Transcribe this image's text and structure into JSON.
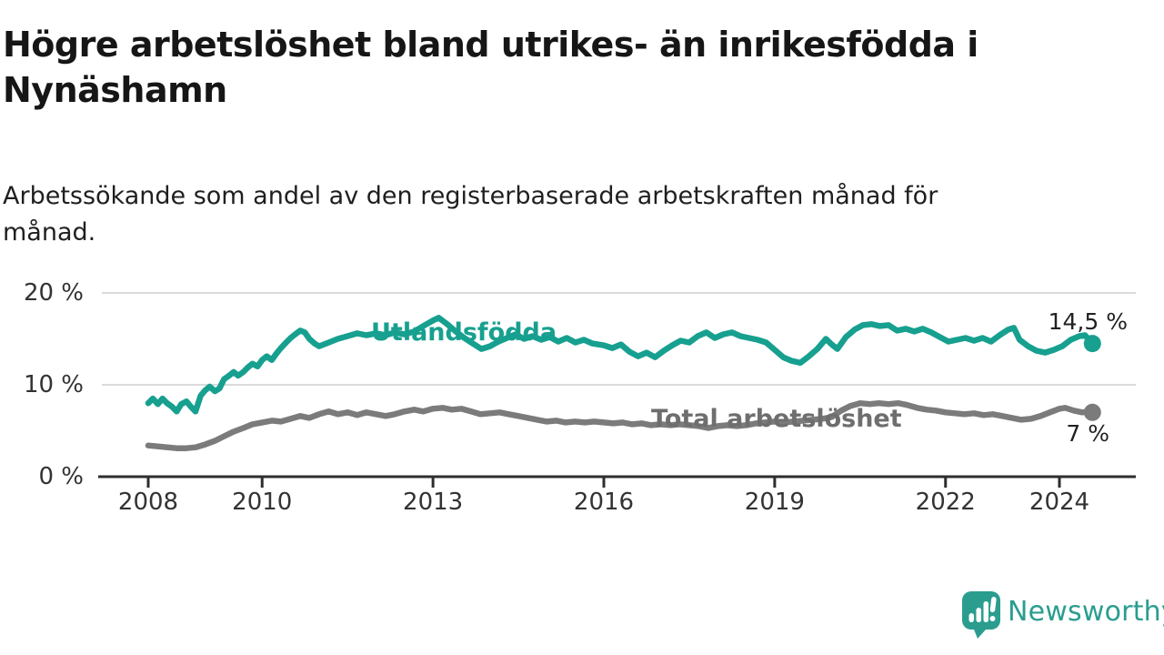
{
  "title_lines": [
    "Högre arbetslöshet bland utrikes- än inrikesfödda i",
    "Nynäshamn"
  ],
  "subtitle_lines": [
    "Arbetssökande som andel av den registerbaserade arbetskraften månad för",
    "månad."
  ],
  "colors": {
    "teal": "#17A08F",
    "gray": "#7B7B7B",
    "gray_label": "#6E6E6E",
    "axis": "#2E2E2E",
    "gridline": "#DBDBDB",
    "value_text": "#222222",
    "logo_teal": "#2A9D8F"
  },
  "logo": {
    "text": "Newsworthy",
    "icon": "speech-bubble-bar-chart-exclamation"
  },
  "chart_data": {
    "type": "line",
    "title": "Högre arbetslöshet bland utrikes- än inrikesfödda i Nynäshamn",
    "subtitle": "Arbetssökande som andel av den registerbaserade arbetskraften månad för månad.",
    "xlabel": "",
    "ylabel": "",
    "unit": "%",
    "grid": "horizontal",
    "legend_position": "inline-on-line",
    "xlim": [
      2007.2,
      2025.4
    ],
    "ylim": [
      0,
      20
    ],
    "y_ticks": [
      0,
      10,
      20
    ],
    "y_tick_labels": [
      "0 %",
      "10 %",
      "20 %"
    ],
    "x_ticks": [
      2008,
      2010,
      2013,
      2016,
      2019,
      2022,
      2024
    ],
    "x_tick_labels": [
      "2008",
      "2010",
      "2013",
      "2016",
      "2019",
      "2022",
      "2024"
    ],
    "series": [
      {
        "name": "Utlandsfödda",
        "color": "#17A08F",
        "label_color": "#17A08F",
        "end_label": "14,5 %",
        "end_value": 14.5,
        "points": [
          [
            2008.0,
            8.0
          ],
          [
            2008.08,
            8.5
          ],
          [
            2008.17,
            7.9
          ],
          [
            2008.25,
            8.5
          ],
          [
            2008.33,
            8.0
          ],
          [
            2008.42,
            7.6
          ],
          [
            2008.5,
            7.1
          ],
          [
            2008.58,
            7.9
          ],
          [
            2008.67,
            8.2
          ],
          [
            2008.75,
            7.6
          ],
          [
            2008.83,
            7.1
          ],
          [
            2008.92,
            8.8
          ],
          [
            2009.0,
            9.4
          ],
          [
            2009.08,
            9.8
          ],
          [
            2009.17,
            9.3
          ],
          [
            2009.25,
            9.6
          ],
          [
            2009.33,
            10.6
          ],
          [
            2009.42,
            11.0
          ],
          [
            2009.5,
            11.4
          ],
          [
            2009.58,
            11.0
          ],
          [
            2009.67,
            11.4
          ],
          [
            2009.75,
            11.9
          ],
          [
            2009.83,
            12.3
          ],
          [
            2009.92,
            12.0
          ],
          [
            2010.0,
            12.7
          ],
          [
            2010.08,
            13.1
          ],
          [
            2010.17,
            12.7
          ],
          [
            2010.25,
            13.4
          ],
          [
            2010.33,
            14.0
          ],
          [
            2010.42,
            14.6
          ],
          [
            2010.5,
            15.1
          ],
          [
            2010.58,
            15.5
          ],
          [
            2010.67,
            15.9
          ],
          [
            2010.75,
            15.7
          ],
          [
            2010.83,
            15.0
          ],
          [
            2010.92,
            14.5
          ],
          [
            2011.0,
            14.2
          ],
          [
            2011.17,
            14.6
          ],
          [
            2011.33,
            15.0
          ],
          [
            2011.5,
            15.3
          ],
          [
            2011.67,
            15.6
          ],
          [
            2011.83,
            15.4
          ],
          [
            2012.0,
            15.6
          ],
          [
            2012.17,
            15.4
          ],
          [
            2012.33,
            15.7
          ],
          [
            2012.5,
            15.5
          ],
          [
            2012.67,
            15.8
          ],
          [
            2012.83,
            16.4
          ],
          [
            2013.0,
            17.0
          ],
          [
            2013.1,
            17.3
          ],
          [
            2013.25,
            16.6
          ],
          [
            2013.4,
            15.8
          ],
          [
            2013.55,
            15.1
          ],
          [
            2013.7,
            14.5
          ],
          [
            2013.85,
            13.9
          ],
          [
            2014.0,
            14.2
          ],
          [
            2014.15,
            14.7
          ],
          [
            2014.3,
            15.1
          ],
          [
            2014.45,
            15.5
          ],
          [
            2014.6,
            15.0
          ],
          [
            2014.75,
            15.3
          ],
          [
            2014.9,
            14.9
          ],
          [
            2015.05,
            15.2
          ],
          [
            2015.2,
            14.7
          ],
          [
            2015.35,
            15.1
          ],
          [
            2015.5,
            14.6
          ],
          [
            2015.65,
            14.9
          ],
          [
            2015.8,
            14.5
          ],
          [
            2016.0,
            14.3
          ],
          [
            2016.15,
            14.0
          ],
          [
            2016.3,
            14.4
          ],
          [
            2016.45,
            13.6
          ],
          [
            2016.6,
            13.1
          ],
          [
            2016.75,
            13.5
          ],
          [
            2016.9,
            13.0
          ],
          [
            2017.05,
            13.7
          ],
          [
            2017.2,
            14.3
          ],
          [
            2017.35,
            14.8
          ],
          [
            2017.5,
            14.6
          ],
          [
            2017.65,
            15.3
          ],
          [
            2017.8,
            15.7
          ],
          [
            2017.95,
            15.1
          ],
          [
            2018.1,
            15.5
          ],
          [
            2018.25,
            15.7
          ],
          [
            2018.4,
            15.3
          ],
          [
            2018.55,
            15.1
          ],
          [
            2018.7,
            14.9
          ],
          [
            2018.85,
            14.6
          ],
          [
            2019.0,
            13.8
          ],
          [
            2019.15,
            13.0
          ],
          [
            2019.3,
            12.6
          ],
          [
            2019.45,
            12.4
          ],
          [
            2019.6,
            13.1
          ],
          [
            2019.75,
            13.9
          ],
          [
            2019.9,
            15.0
          ],
          [
            2020.0,
            14.4
          ],
          [
            2020.1,
            13.9
          ],
          [
            2020.25,
            15.2
          ],
          [
            2020.4,
            16.0
          ],
          [
            2020.55,
            16.5
          ],
          [
            2020.7,
            16.6
          ],
          [
            2020.85,
            16.4
          ],
          [
            2021.0,
            16.5
          ],
          [
            2021.15,
            15.9
          ],
          [
            2021.3,
            16.1
          ],
          [
            2021.45,
            15.8
          ],
          [
            2021.6,
            16.1
          ],
          [
            2021.75,
            15.7
          ],
          [
            2021.9,
            15.2
          ],
          [
            2022.05,
            14.7
          ],
          [
            2022.2,
            14.9
          ],
          [
            2022.35,
            15.1
          ],
          [
            2022.5,
            14.8
          ],
          [
            2022.65,
            15.1
          ],
          [
            2022.8,
            14.7
          ],
          [
            2022.95,
            15.4
          ],
          [
            2023.1,
            16.0
          ],
          [
            2023.2,
            16.2
          ],
          [
            2023.3,
            14.9
          ],
          [
            2023.45,
            14.2
          ],
          [
            2023.6,
            13.7
          ],
          [
            2023.75,
            13.5
          ],
          [
            2023.9,
            13.8
          ],
          [
            2024.05,
            14.2
          ],
          [
            2024.2,
            14.9
          ],
          [
            2024.35,
            15.3
          ],
          [
            2024.45,
            15.4
          ],
          [
            2024.58,
            14.5
          ]
        ]
      },
      {
        "name": "Total arbetslöshet",
        "color": "#7B7B7B",
        "label_color": "#6E6E6E",
        "end_label": "7 %",
        "end_value": 7.0,
        "points": [
          [
            2008.0,
            3.4
          ],
          [
            2008.17,
            3.3
          ],
          [
            2008.33,
            3.2
          ],
          [
            2008.5,
            3.1
          ],
          [
            2008.67,
            3.1
          ],
          [
            2008.83,
            3.2
          ],
          [
            2009.0,
            3.5
          ],
          [
            2009.17,
            3.9
          ],
          [
            2009.33,
            4.4
          ],
          [
            2009.5,
            4.9
          ],
          [
            2009.67,
            5.3
          ],
          [
            2009.83,
            5.7
          ],
          [
            2010.0,
            5.9
          ],
          [
            2010.17,
            6.1
          ],
          [
            2010.33,
            6.0
          ],
          [
            2010.5,
            6.3
          ],
          [
            2010.67,
            6.6
          ],
          [
            2010.83,
            6.4
          ],
          [
            2011.0,
            6.8
          ],
          [
            2011.17,
            7.1
          ],
          [
            2011.33,
            6.8
          ],
          [
            2011.5,
            7.0
          ],
          [
            2011.67,
            6.7
          ],
          [
            2011.83,
            7.0
          ],
          [
            2012.0,
            6.8
          ],
          [
            2012.17,
            6.6
          ],
          [
            2012.33,
            6.8
          ],
          [
            2012.5,
            7.1
          ],
          [
            2012.67,
            7.3
          ],
          [
            2012.83,
            7.1
          ],
          [
            2013.0,
            7.4
          ],
          [
            2013.17,
            7.5
          ],
          [
            2013.33,
            7.3
          ],
          [
            2013.5,
            7.4
          ],
          [
            2013.67,
            7.1
          ],
          [
            2013.83,
            6.8
          ],
          [
            2014.0,
            6.9
          ],
          [
            2014.17,
            7.0
          ],
          [
            2014.33,
            6.8
          ],
          [
            2014.5,
            6.6
          ],
          [
            2014.67,
            6.4
          ],
          [
            2014.83,
            6.2
          ],
          [
            2015.0,
            6.0
          ],
          [
            2015.17,
            6.1
          ],
          [
            2015.33,
            5.9
          ],
          [
            2015.5,
            6.0
          ],
          [
            2015.67,
            5.9
          ],
          [
            2015.83,
            6.0
          ],
          [
            2016.0,
            5.9
          ],
          [
            2016.17,
            5.8
          ],
          [
            2016.33,
            5.9
          ],
          [
            2016.5,
            5.7
          ],
          [
            2016.67,
            5.8
          ],
          [
            2016.83,
            5.6
          ],
          [
            2017.0,
            5.7
          ],
          [
            2017.17,
            5.6
          ],
          [
            2017.33,
            5.7
          ],
          [
            2017.5,
            5.6
          ],
          [
            2017.67,
            5.5
          ],
          [
            2017.83,
            5.3
          ],
          [
            2018.0,
            5.5
          ],
          [
            2018.17,
            5.6
          ],
          [
            2018.33,
            5.5
          ],
          [
            2018.5,
            5.6
          ],
          [
            2018.67,
            5.8
          ],
          [
            2018.83,
            5.9
          ],
          [
            2019.0,
            6.0
          ],
          [
            2019.17,
            5.9
          ],
          [
            2019.33,
            6.0
          ],
          [
            2019.5,
            6.1
          ],
          [
            2019.67,
            6.2
          ],
          [
            2019.83,
            6.3
          ],
          [
            2020.0,
            6.5
          ],
          [
            2020.17,
            7.2
          ],
          [
            2020.33,
            7.7
          ],
          [
            2020.5,
            8.0
          ],
          [
            2020.67,
            7.9
          ],
          [
            2020.83,
            8.0
          ],
          [
            2021.0,
            7.9
          ],
          [
            2021.17,
            8.0
          ],
          [
            2021.33,
            7.8
          ],
          [
            2021.5,
            7.5
          ],
          [
            2021.67,
            7.3
          ],
          [
            2021.83,
            7.2
          ],
          [
            2022.0,
            7.0
          ],
          [
            2022.17,
            6.9
          ],
          [
            2022.33,
            6.8
          ],
          [
            2022.5,
            6.9
          ],
          [
            2022.67,
            6.7
          ],
          [
            2022.83,
            6.8
          ],
          [
            2023.0,
            6.6
          ],
          [
            2023.17,
            6.4
          ],
          [
            2023.33,
            6.2
          ],
          [
            2023.5,
            6.3
          ],
          [
            2023.67,
            6.6
          ],
          [
            2023.83,
            7.0
          ],
          [
            2024.0,
            7.4
          ],
          [
            2024.1,
            7.5
          ],
          [
            2024.25,
            7.2
          ],
          [
            2024.4,
            7.0
          ],
          [
            2024.5,
            7.1
          ],
          [
            2024.58,
            7.0
          ]
        ]
      }
    ]
  }
}
